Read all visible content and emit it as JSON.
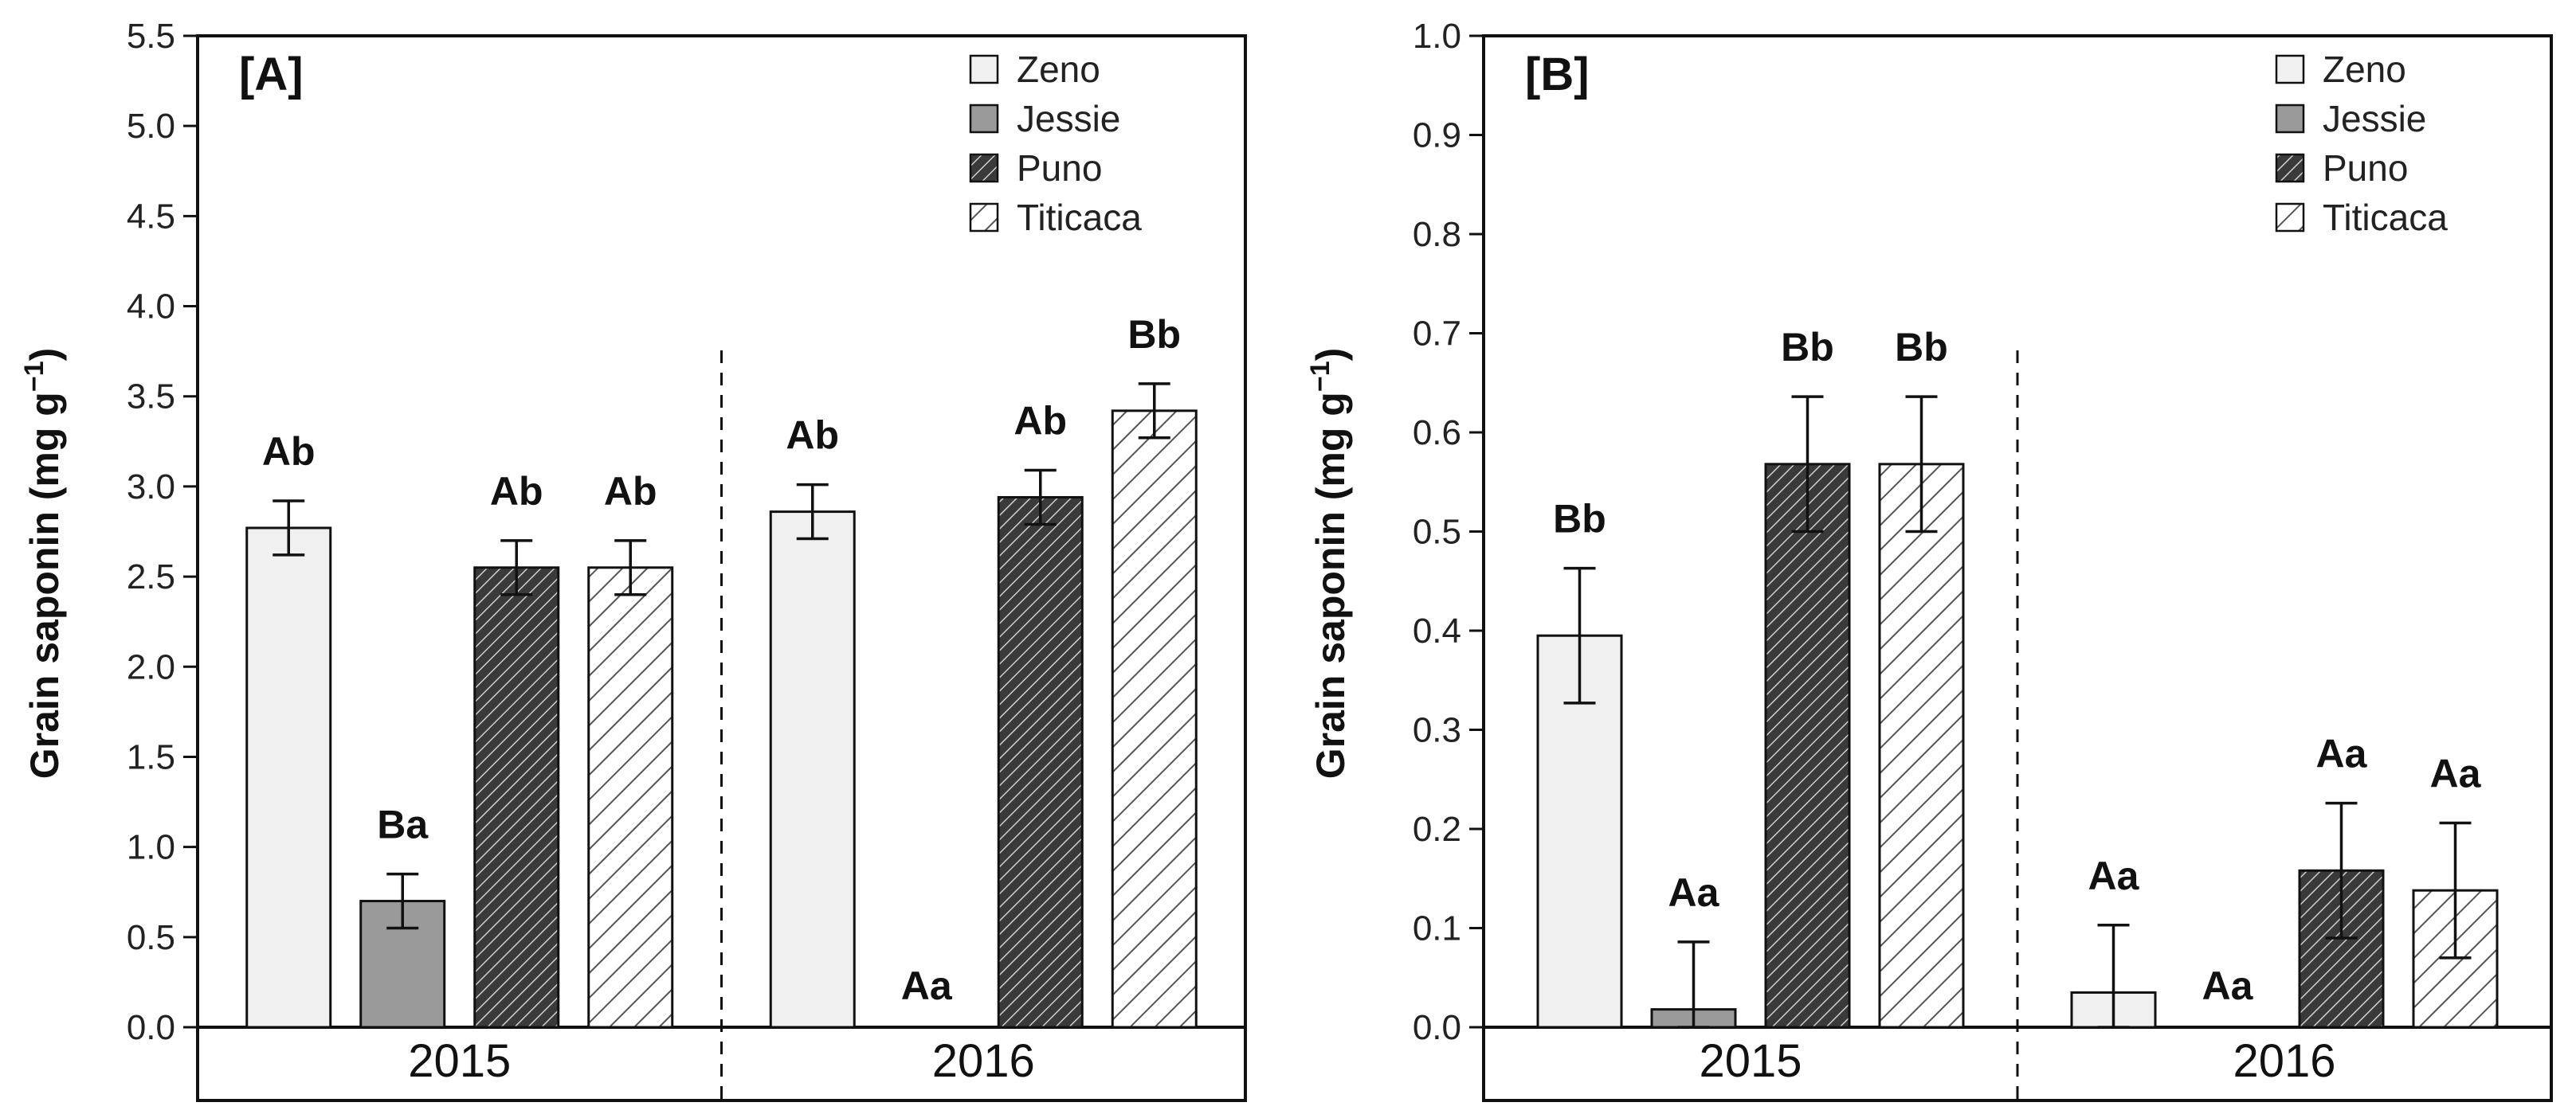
{
  "chart_data": [
    {
      "type": "bar",
      "panel_label": "[A]",
      "ylabel": "Grain saponin (mg g",
      "ylabel_sup": "−1",
      "ylabel_close": ")",
      "ylim": [
        0,
        5.5
      ],
      "yticks": [
        "0.0",
        "0.5",
        "1.0",
        "1.5",
        "2.0",
        "2.5",
        "3.0",
        "3.5",
        "4.0",
        "4.5",
        "5.0",
        "5.5"
      ],
      "categories": [
        "2015",
        "2016"
      ],
      "series": [
        {
          "name": "Zeno",
          "values": [
            2.77,
            2.86
          ],
          "errors": [
            0.15,
            0.15
          ],
          "letters": [
            "Ab",
            "Ab"
          ]
        },
        {
          "name": "Jessie",
          "values": [
            0.7,
            0.0
          ],
          "errors": [
            0.15,
            0.0
          ],
          "letters": [
            "Ba",
            "Aa"
          ]
        },
        {
          "name": "Puno",
          "values": [
            2.55,
            2.94
          ],
          "errors": [
            0.15,
            0.15
          ],
          "letters": [
            "Ab",
            "Ab"
          ]
        },
        {
          "name": "Titicaca",
          "values": [
            2.55,
            3.42
          ],
          "errors": [
            0.15,
            0.15
          ],
          "letters": [
            "Ab",
            "Bb"
          ]
        }
      ],
      "legend_position": "top-right"
    },
    {
      "type": "bar",
      "panel_label": "[B]",
      "ylabel": "Grain saponin (mg g",
      "ylabel_sup": "−1",
      "ylabel_close": ")",
      "ylim": [
        0,
        1.0
      ],
      "yticks": [
        "0.0",
        "0.1",
        "0.2",
        "0.3",
        "0.4",
        "0.5",
        "0.6",
        "0.7",
        "0.8",
        "0.9",
        "1.0"
      ],
      "categories": [
        "2015",
        "2016"
      ],
      "series": [
        {
          "name": "Zeno",
          "values": [
            0.395,
            0.035
          ],
          "errors": [
            0.068,
            0.068
          ],
          "letters": [
            "Bb",
            "Aa"
          ]
        },
        {
          "name": "Jessie",
          "values": [
            0.018,
            0.0
          ],
          "errors": [
            0.068,
            0.0
          ],
          "letters": [
            "Aa",
            "Aa"
          ]
        },
        {
          "name": "Puno",
          "values": [
            0.568,
            0.158
          ],
          "errors": [
            0.068,
            0.068
          ],
          "letters": [
            "Bb",
            "Aa"
          ]
        },
        {
          "name": "Titicaca",
          "values": [
            0.568,
            0.138
          ],
          "errors": [
            0.068,
            0.068
          ],
          "letters": [
            "Bb",
            "Aa"
          ]
        }
      ],
      "legend_position": "top-right"
    }
  ],
  "styles": {
    "Zeno": {
      "fill": "#f0f0f0",
      "pattern": "none"
    },
    "Jessie": {
      "fill": "#9a9a9a",
      "pattern": "none"
    },
    "Puno": {
      "fill": "#555555",
      "pattern": "dense-hatch"
    },
    "Titicaca": {
      "fill": "#ffffff",
      "pattern": "sparse-hatch"
    }
  }
}
